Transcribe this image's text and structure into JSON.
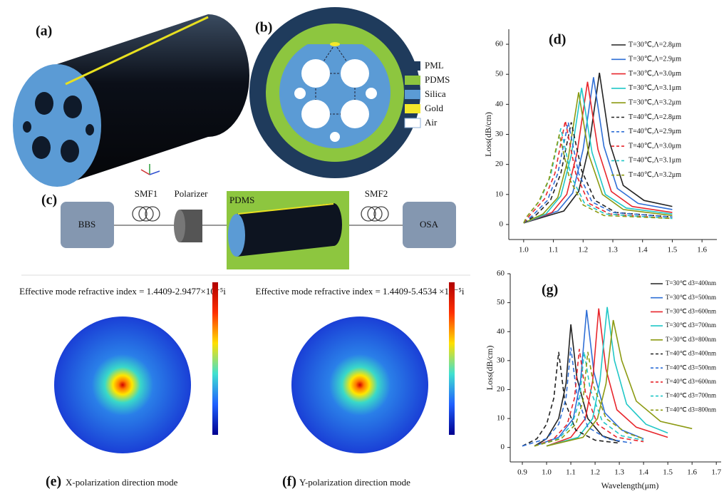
{
  "figure": {
    "a_label": "(a)",
    "b_label": "(b)",
    "b_legend": [
      "PML",
      "PDMS",
      "Silica",
      "Gold",
      "Air"
    ],
    "c_label": "(c)",
    "c_parts": {
      "source": "BBS",
      "fiber1": "SMF1",
      "polarizer": "Polarizer",
      "sensor": "PDMS",
      "fiber2": "SMF2",
      "analyzer": "OSA"
    },
    "e": {
      "label": "(e)",
      "index": "Effective mode refractive index = 1.4409-2.9477×10⁻⁵i",
      "caption": "X-polarization direction mode"
    },
    "f": {
      "label": "(f)",
      "index": "Effective mode refractive index = 1.4409-5.4534 ×10⁻⁵i",
      "caption": "Y-polarization direction mode"
    }
  },
  "chart_data": [
    {
      "type": "line",
      "title": "(d)",
      "y_label": "Loss(dB/cm)",
      "legend": "upper right",
      "xlim": [
        0.95,
        1.65
      ],
      "ylim": [
        -5,
        65
      ],
      "xticks": [
        {
          "value": 1,
          "label": "1.0"
        },
        1.1,
        1.2,
        1.3,
        1.4,
        1.5,
        1.6
      ],
      "yticks": [
        0,
        10,
        20,
        30,
        40,
        50,
        60
      ],
      "series": [
        {
          "name": "T=30℃,Λ=2.8μm",
          "color": "#222222",
          "line_style": "solid",
          "x": [
            1.0,
            1.135,
            1.185,
            1.22,
            1.255,
            1.29,
            1.335,
            1.405,
            1.5
          ],
          "values": [
            0.5,
            4.5,
            11,
            26,
            50.5,
            27,
            13,
            8,
            6
          ]
        },
        {
          "name": "T=30℃,Λ=2.9μm",
          "color": "#2f6fd6",
          "line_style": "solid",
          "x": [
            1.0,
            1.115,
            1.165,
            1.2,
            1.235,
            1.27,
            1.315,
            1.385,
            1.5
          ],
          "values": [
            0.5,
            4.5,
            10.5,
            25,
            49,
            26,
            12,
            7,
            5
          ]
        },
        {
          "name": "T=30℃,Λ=3.0μm",
          "color": "#e8262c",
          "line_style": "solid",
          "x": [
            1.0,
            1.095,
            1.145,
            1.18,
            1.215,
            1.25,
            1.295,
            1.365,
            1.5
          ],
          "values": [
            0.5,
            4,
            10,
            24,
            47.5,
            25,
            11,
            6,
            4
          ]
        },
        {
          "name": "T=30℃,Λ=3.1μm",
          "color": "#21c7c7",
          "line_style": "solid",
          "x": [
            1.0,
            1.075,
            1.125,
            1.16,
            1.195,
            1.23,
            1.275,
            1.345,
            1.5
          ],
          "values": [
            0.5,
            3.5,
            9.5,
            23,
            45.5,
            24,
            10,
            5.5,
            3.5
          ]
        },
        {
          "name": "T=30℃,Λ=3.2μm",
          "color": "#8c9a12",
          "line_style": "solid",
          "x": [
            1.0,
            1.065,
            1.115,
            1.15,
            1.185,
            1.22,
            1.265,
            1.335,
            1.5
          ],
          "values": [
            0.5,
            3.5,
            9,
            22,
            44,
            23,
            10,
            5,
            3
          ]
        },
        {
          "name": "T=40℃,Λ=2.8μm",
          "color": "#222222",
          "line_style": "dashed",
          "x": [
            1.0,
            1.04,
            1.09,
            1.125,
            1.16,
            1.195,
            1.24,
            1.31,
            1.5
          ],
          "values": [
            0.5,
            3,
            8,
            17,
            34,
            18,
            8,
            4,
            2.5
          ]
        },
        {
          "name": "T=40℃,Λ=2.9μm",
          "color": "#2f6fd6",
          "line_style": "dashed",
          "x": [
            1.0,
            1.03,
            1.08,
            1.115,
            1.15,
            1.185,
            1.23,
            1.3,
            1.5
          ],
          "values": [
            0.5,
            3,
            8,
            17,
            34,
            17,
            7.5,
            4,
            2.5
          ]
        },
        {
          "name": "T=40℃,Λ=3.0μm",
          "color": "#e8262c",
          "line_style": "dashed",
          "x": [
            1.0,
            1.02,
            1.07,
            1.105,
            1.14,
            1.175,
            1.22,
            1.29,
            1.5
          ],
          "values": [
            0.5,
            3,
            8.5,
            17,
            34.5,
            17,
            7,
            3.5,
            2
          ]
        },
        {
          "name": "T=40℃,Λ=3.1μm",
          "color": "#21c7c7",
          "line_style": "dashed",
          "x": [
            1.0,
            1.01,
            1.055,
            1.09,
            1.125,
            1.16,
            1.205,
            1.275,
            1.5
          ],
          "values": [
            0.5,
            2.5,
            8,
            16,
            32,
            16,
            7,
            3.5,
            2
          ]
        },
        {
          "name": "T=40℃,Λ=3.2μm",
          "color": "#8c9a12",
          "line_style": "dashed",
          "x": [
            1.0,
            1.01,
            1.05,
            1.085,
            1.12,
            1.155,
            1.2,
            1.27,
            1.5
          ],
          "values": [
            0.5,
            2.5,
            7.5,
            15,
            30,
            15,
            6.5,
            3,
            2
          ]
        }
      ]
    },
    {
      "type": "line",
      "title": "(g)",
      "x_label": "Wavelength(μm)",
      "y_label": "Loss(dB/cm)",
      "legend": "upper right",
      "xlim": [
        0.85,
        1.72
      ],
      "ylim": [
        -5,
        60
      ],
      "xticks": [
        0.9,
        {
          "value": 1,
          "label": "1.0"
        },
        1.1,
        1.2,
        1.3,
        1.4,
        1.5,
        1.6,
        1.7
      ],
      "yticks": [
        0,
        10,
        20,
        30,
        40,
        50,
        60
      ],
      "series": [
        {
          "name": "T=30℃ d3=400nm",
          "color": "#222222",
          "line_style": "solid",
          "x": [
            0.95,
            1.0,
            1.05,
            1.08,
            1.1,
            1.125,
            1.17,
            1.23,
            1.3
          ],
          "values": [
            0.5,
            3,
            10,
            22,
            42.5,
            24,
            10,
            4,
            2
          ]
        },
        {
          "name": "T=30℃ d3=500nm",
          "color": "#2f6fd6",
          "line_style": "solid",
          "x": [
            0.95,
            1.05,
            1.11,
            1.14,
            1.165,
            1.195,
            1.24,
            1.31,
            1.4
          ],
          "values": [
            0.5,
            3.5,
            10,
            23,
            47.5,
            26,
            12,
            6,
            3
          ]
        },
        {
          "name": "T=30℃ d3=600nm",
          "color": "#e8262c",
          "line_style": "solid",
          "x": [
            1.0,
            1.1,
            1.16,
            1.19,
            1.215,
            1.245,
            1.29,
            1.37,
            1.5
          ],
          "values": [
            0.5,
            3.5,
            10,
            23,
            48,
            27,
            13,
            7,
            3.5
          ]
        },
        {
          "name": "T=30℃ d3=700nm",
          "color": "#21c7c7",
          "line_style": "solid",
          "x": [
            1.0,
            1.13,
            1.19,
            1.22,
            1.25,
            1.28,
            1.33,
            1.41,
            1.5
          ],
          "values": [
            0.5,
            3.5,
            10,
            23,
            48.5,
            30,
            15,
            8,
            5
          ]
        },
        {
          "name": "T=30℃ d3=800nm",
          "color": "#8c9a12",
          "line_style": "solid",
          "x": [
            1.0,
            1.15,
            1.21,
            1.245,
            1.275,
            1.31,
            1.37,
            1.47,
            1.6
          ],
          "values": [
            0.5,
            3.5,
            10,
            22,
            44,
            30,
            16,
            9,
            6.5
          ]
        },
        {
          "name": "T=40℃ d3=400nm",
          "color": "#222222",
          "line_style": "dashed",
          "x": [
            0.9,
            0.96,
            1.0,
            1.03,
            1.05,
            1.075,
            1.12,
            1.2,
            1.3
          ],
          "values": [
            0.5,
            3,
            8,
            17,
            33,
            16,
            6,
            2.5,
            1.5
          ]
        },
        {
          "name": "T=40℃ d3=500nm",
          "color": "#2f6fd6",
          "line_style": "dashed",
          "x": [
            0.9,
            1.0,
            1.05,
            1.08,
            1.1,
            1.125,
            1.17,
            1.25,
            1.35
          ],
          "values": [
            0.5,
            3,
            8,
            17,
            34.5,
            18,
            7,
            3,
            1.5
          ]
        },
        {
          "name": "T=40℃ d3=600nm",
          "color": "#e8262c",
          "line_style": "dashed",
          "x": [
            0.95,
            1.03,
            1.085,
            1.115,
            1.135,
            1.16,
            1.21,
            1.29,
            1.4
          ],
          "values": [
            0.5,
            3,
            8,
            17,
            34,
            19,
            8,
            3.5,
            2
          ]
        },
        {
          "name": "T=40℃ d3=700nm",
          "color": "#21c7c7",
          "line_style": "dashed",
          "x": [
            0.95,
            1.05,
            1.105,
            1.135,
            1.155,
            1.18,
            1.23,
            1.31,
            1.4
          ],
          "values": [
            0.5,
            3,
            8,
            16,
            33,
            20,
            9,
            4,
            2.5
          ]
        },
        {
          "name": "T=40℃ d3=800nm",
          "color": "#8c9a12",
          "line_style": "dashed",
          "x": [
            0.95,
            1.06,
            1.12,
            1.15,
            1.17,
            1.195,
            1.245,
            1.33,
            1.4
          ],
          "values": [
            0.5,
            3,
            8,
            16,
            33,
            21,
            10,
            5,
            3
          ]
        }
      ]
    }
  ]
}
